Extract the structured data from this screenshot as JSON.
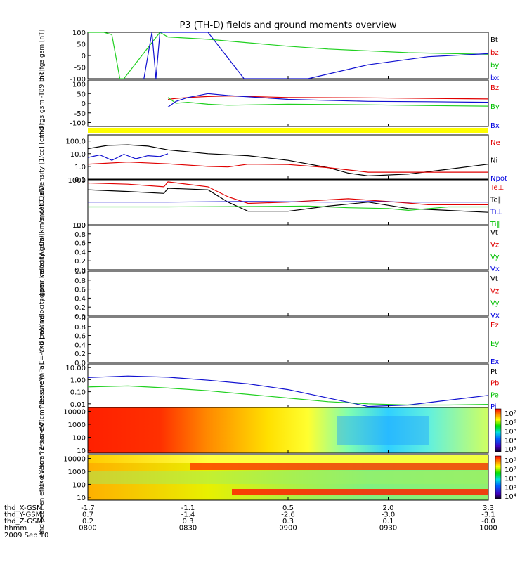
{
  "title": "P3 (TH-D) fields and ground moments overview",
  "chart_data": [
    {
      "type": "line",
      "ylabel": "thd fgs gsm [nT]",
      "ylim": [
        -100,
        100
      ],
      "y_ticks": [
        "100",
        "50",
        "0",
        "-50",
        "-100"
      ],
      "legend": [
        {
          "label": "Bt",
          "color": "#000000"
        },
        {
          "label": "bz",
          "color": "#e00000"
        },
        {
          "label": "by",
          "color": "#00c000"
        },
        {
          "label": "bx",
          "color": "#0000e0"
        }
      ],
      "series": [
        {
          "name": "by",
          "color": "#20d020",
          "x": [
            0,
            0.04,
            0.06,
            0.08,
            0.09,
            0.18,
            0.2,
            0.3,
            0.4,
            0.5,
            0.6,
            0.8,
            1
          ],
          "y": [
            100,
            100,
            90,
            -100,
            -100,
            100,
            80,
            70,
            55,
            40,
            28,
            12,
            5
          ]
        },
        {
          "name": "bx",
          "color": "#1010d0",
          "x": [
            0.14,
            0.16,
            0.17,
            0.18,
            0.3,
            0.39,
            0.55,
            0.7,
            0.85,
            1
          ],
          "y": [
            -100,
            100,
            -100,
            100,
            100,
            -100,
            -100,
            -40,
            -5,
            8
          ]
        }
      ]
    },
    {
      "type": "line",
      "ylabel": "thd fgs gsm -T89 [nT]",
      "ylim": [
        -120,
        120
      ],
      "y_ticks": [
        "100",
        "50",
        "0",
        "-50",
        "-100"
      ],
      "legend": [
        {
          "label": "Bz",
          "color": "#e00000"
        },
        {
          "label": "By",
          "color": "#00c000"
        },
        {
          "label": "Bx",
          "color": "#0000e0"
        }
      ],
      "series": [
        {
          "name": "Bz",
          "color": "#e00000",
          "x": [
            0.2,
            0.22,
            0.25,
            0.3,
            0.35,
            0.5,
            0.7,
            0.85,
            1
          ],
          "y": [
            20,
            25,
            30,
            35,
            38,
            30,
            28,
            25,
            22
          ]
        },
        {
          "name": "By",
          "color": "#20d020",
          "x": [
            0.2,
            0.22,
            0.25,
            0.3,
            0.35,
            0.5,
            0.7,
            0.85,
            1
          ],
          "y": [
            30,
            0,
            5,
            -5,
            -10,
            -5,
            -8,
            -12,
            -15
          ]
        },
        {
          "name": "Bx",
          "color": "#1010d0",
          "x": [
            0.2,
            0.22,
            0.25,
            0.3,
            0.35,
            0.5,
            0.7,
            0.85,
            1
          ],
          "y": [
            -20,
            10,
            30,
            50,
            40,
            20,
            10,
            8,
            5
          ]
        }
      ]
    },
    {
      "type": "line",
      "ylabel": "Density [1/cc] [cm-3]",
      "yscale": "log",
      "ylim": [
        0.1,
        300
      ],
      "y_ticks": [
        "100.0",
        "10.0",
        "1.0",
        "0.1"
      ],
      "legend": [
        {
          "label": "Ne",
          "color": "#e00000"
        },
        {
          "label": "Ni",
          "color": "#000000"
        },
        {
          "label": "Npot",
          "color": "#0000e0"
        }
      ],
      "series": [
        {
          "name": "Ni",
          "color": "#000000",
          "x": [
            0,
            0.05,
            0.1,
            0.15,
            0.2,
            0.3,
            0.4,
            0.5,
            0.6,
            0.65,
            0.7,
            0.8,
            0.9,
            1
          ],
          "y": [
            25,
            45,
            50,
            40,
            20,
            10,
            7,
            3,
            0.8,
            0.3,
            0.18,
            0.25,
            0.6,
            1.5
          ]
        },
        {
          "name": "Ne",
          "color": "#e00000",
          "x": [
            0,
            0.1,
            0.2,
            0.3,
            0.35,
            0.4,
            0.5,
            0.6,
            0.7,
            0.8,
            0.9,
            1
          ],
          "y": [
            1.5,
            2.2,
            1.6,
            1.0,
            0.9,
            1.5,
            1.4,
            0.8,
            0.35,
            0.35,
            0.35,
            0.35
          ]
        },
        {
          "name": "Npot",
          "color": "#1010d0",
          "x": [
            0,
            0.03,
            0.06,
            0.09,
            0.12,
            0.15,
            0.18,
            0.2
          ],
          "y": [
            5,
            8,
            3,
            9,
            4,
            7,
            6,
            10
          ]
        }
      ]
    },
    {
      "type": "line",
      "ylabel": "moqt3 [eV]",
      "yscale": "log",
      "ylim": [
        100,
        1000
      ],
      "y_ticks": [
        "1000",
        "100"
      ],
      "legend": [
        {
          "label": "Te⊥",
          "color": "#e00000"
        },
        {
          "label": "Te∥",
          "color": "#000000"
        },
        {
          "label": "Ti⊥",
          "color": "#0000e0"
        },
        {
          "label": "Ti∥",
          "color": "#00c000"
        }
      ],
      "series": [
        {
          "name": "Te⊥",
          "color": "#e00000",
          "x": [
            0,
            0.1,
            0.19,
            0.2,
            0.3,
            0.35,
            0.4,
            0.5,
            0.65,
            0.75,
            0.85,
            1
          ],
          "y": [
            850,
            800,
            700,
            900,
            700,
            420,
            300,
            320,
            380,
            330,
            280,
            280
          ]
        },
        {
          "name": "Te∥",
          "color": "#000000",
          "x": [
            0,
            0.1,
            0.19,
            0.2,
            0.3,
            0.35,
            0.4,
            0.5,
            0.6,
            0.7,
            0.8,
            1
          ],
          "y": [
            600,
            550,
            500,
            650,
            600,
            320,
            200,
            200,
            260,
            320,
            230,
            190
          ]
        },
        {
          "name": "Ti⊥",
          "color": "#1010d0",
          "x": [
            0,
            0.2,
            0.4,
            0.6,
            0.7,
            0.8,
            0.9,
            1
          ],
          "y": [
            320,
            320,
            330,
            320,
            330,
            320,
            320,
            320
          ]
        },
        {
          "name": "Ti∥",
          "color": "#20d020",
          "x": [
            0,
            0.2,
            0.4,
            0.55,
            0.65,
            0.75,
            0.8,
            0.9,
            1
          ],
          "y": [
            250,
            250,
            255,
            260,
            240,
            230,
            210,
            250,
            250
          ]
        }
      ]
    },
    {
      "type": "line",
      "ylabel": "thd peir velocity gsm [km/s] (All Qs)",
      "ylim": [
        0,
        1
      ],
      "y_ticks": [
        "1.0",
        "0.8",
        "0.6",
        "0.4",
        "0.2",
        "0.0"
      ],
      "legend": [
        {
          "label": "Vt",
          "color": "#000000"
        },
        {
          "label": "Vz",
          "color": "#e00000"
        },
        {
          "label": "Vy",
          "color": "#00c000"
        },
        {
          "label": "Vx",
          "color": "#0000e0"
        }
      ],
      "series": []
    },
    {
      "type": "line",
      "ylabel": "thd peer velocity gsm [km/s] (All Qs)",
      "ylim": [
        0,
        1
      ],
      "y_ticks": [
        "1.0",
        "0.8",
        "0.6",
        "0.4",
        "0.2",
        "0.0"
      ],
      "legend": [
        {
          "label": "Vt",
          "color": "#000000"
        },
        {
          "label": "Vz",
          "color": "#e00000"
        },
        {
          "label": "Vy",
          "color": "#00c000"
        },
        {
          "label": "Vx",
          "color": "#0000e0"
        }
      ],
      "series": []
    },
    {
      "type": "line",
      "ylabel": "E=-VxB [mV/m]",
      "ylim": [
        0,
        1
      ],
      "y_ticks": [
        "1.0",
        "0.8",
        "0.6",
        "0.4",
        "0.2",
        "0.0"
      ],
      "legend": [
        {
          "label": "Ez",
          "color": "#e00000"
        },
        {
          "label": "Ey",
          "color": "#00c000"
        },
        {
          "label": "Ex",
          "color": "#0000e0"
        }
      ],
      "series": []
    },
    {
      "type": "line",
      "ylabel": "Pressure [nPa]",
      "yscale": "log",
      "ylim": [
        0.005,
        20
      ],
      "y_ticks": [
        "10.00",
        "1.00",
        "0.10",
        "0.01"
      ],
      "legend": [
        {
          "label": "Pt",
          "color": "#000000"
        },
        {
          "label": "Pb",
          "color": "#e00000"
        },
        {
          "label": "Pe",
          "color": "#00c000"
        },
        {
          "label": "Pi",
          "color": "#0000e0"
        }
      ],
      "series": [
        {
          "name": "Pi",
          "color": "#1010d0",
          "x": [
            0,
            0.1,
            0.2,
            0.3,
            0.4,
            0.5,
            0.6,
            0.7,
            0.8,
            0.9,
            1
          ],
          "y": [
            1.5,
            2.0,
            1.6,
            0.9,
            0.45,
            0.15,
            0.03,
            0.006,
            0.008,
            0.02,
            0.05
          ]
        },
        {
          "name": "Pe",
          "color": "#20d020",
          "x": [
            0,
            0.1,
            0.2,
            0.3,
            0.4,
            0.5,
            0.6,
            0.7,
            0.8,
            0.9,
            1
          ],
          "y": [
            0.25,
            0.3,
            0.2,
            0.12,
            0.06,
            0.03,
            0.015,
            0.01,
            0.008,
            0.008,
            0.009
          ]
        }
      ]
    },
    {
      "type": "heatmap",
      "ylabel": "thd peir en eflux eV/(cm^2-s-sr-eV)",
      "yscale": "log",
      "ylim": [
        6,
        20000
      ],
      "y_ticks": [
        "10000",
        "1000",
        "100",
        "10"
      ],
      "colorbar_labels": [
        "10⁷",
        "10⁶",
        "10⁵",
        "10⁴",
        "10³"
      ]
    },
    {
      "type": "heatmap",
      "ylabel": "thd peer en eflux eV/(cm^2-s-sr-eV)",
      "yscale": "log",
      "ylim": [
        6,
        20000
      ],
      "y_ticks": [
        "10000",
        "1000",
        "100",
        "10"
      ],
      "colorbar_labels": [
        "10⁸",
        "10⁷",
        "10⁶",
        "10⁵",
        "10⁴"
      ]
    }
  ],
  "x_axis": {
    "row_labels": [
      "thd_X-GSM",
      "thd_Y-GSM",
      "thd_Z-GSM",
      "hhmm"
    ],
    "date": "2009 Sep 10",
    "ticks": [
      {
        "x": 0.0,
        "values": [
          "-1.7",
          "0.7",
          "0.2",
          "0800"
        ]
      },
      {
        "x": 0.25,
        "values": [
          "-1.1",
          "-1.4",
          "0.3",
          "0830"
        ]
      },
      {
        "x": 0.5,
        "values": [
          "0.5",
          "-2.6",
          "0.3",
          "0900"
        ]
      },
      {
        "x": 0.75,
        "values": [
          "2.0",
          "-3.0",
          "0.1",
          "0930"
        ]
      },
      {
        "x": 1.0,
        "values": [
          "3.3",
          "-3.1",
          "-0.0",
          "1000"
        ]
      }
    ]
  }
}
